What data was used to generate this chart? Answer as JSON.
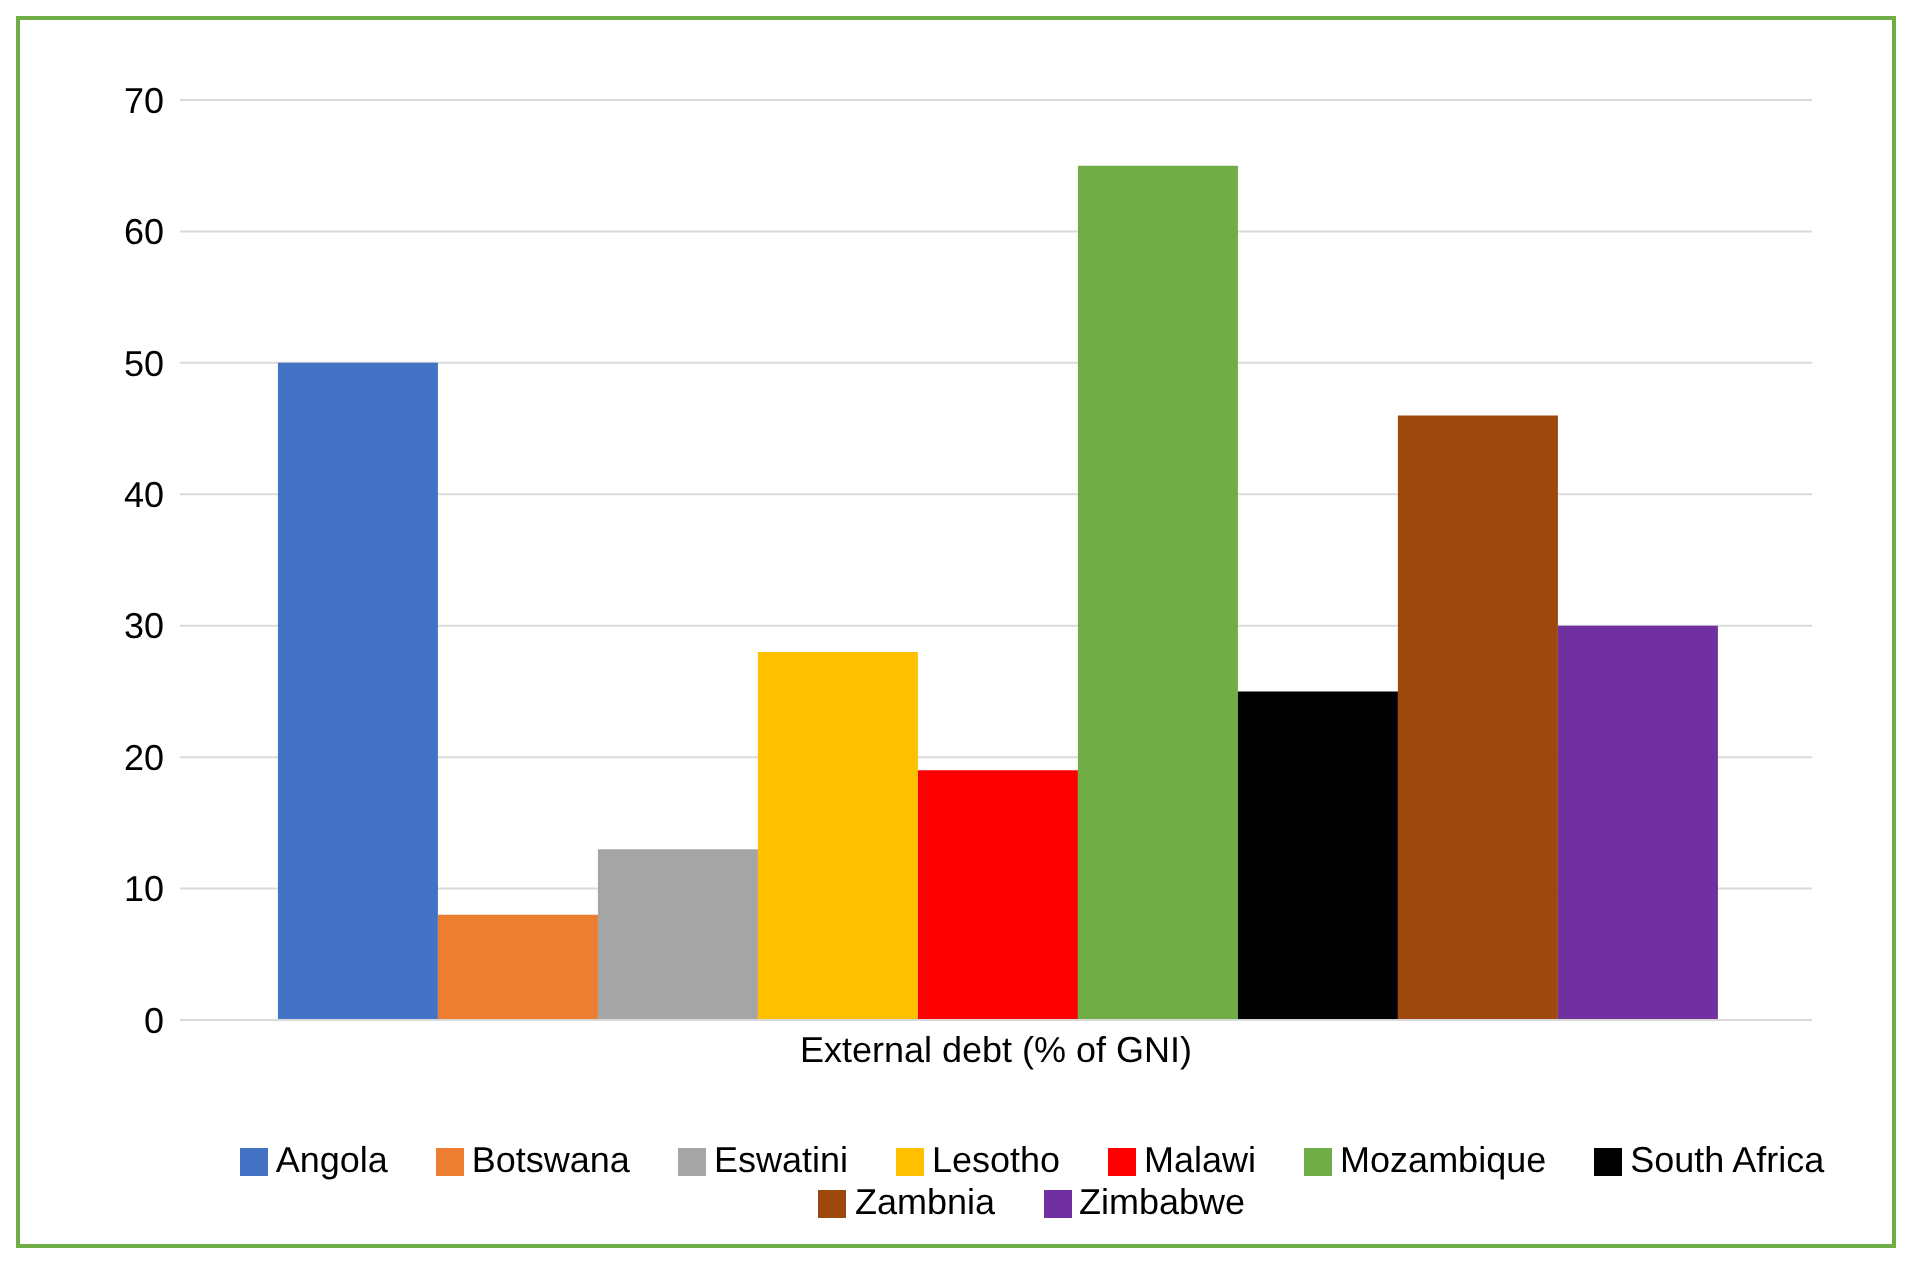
{
  "chart_data": {
    "type": "bar",
    "categories": [
      "External debt (% of GNI)"
    ],
    "series": [
      {
        "name": "Angola",
        "color": "#4472c4",
        "values": [
          50
        ]
      },
      {
        "name": "Botswana",
        "color": "#ed7d31",
        "values": [
          8
        ]
      },
      {
        "name": "Eswatini",
        "color": "#a5a5a5",
        "values": [
          13
        ]
      },
      {
        "name": "Lesotho",
        "color": "#ffc000",
        "values": [
          28
        ]
      },
      {
        "name": "Malawi",
        "color": "#ff0000",
        "values": [
          19
        ]
      },
      {
        "name": "Mozambique",
        "color": "#70ad47",
        "values": [
          65
        ]
      },
      {
        "name": "South Africa",
        "color": "#000000",
        "values": [
          25
        ]
      },
      {
        "name": "Zambnia",
        "color": "#9e480e",
        "values": [
          46
        ]
      },
      {
        "name": "Zimbabwe",
        "color": "#7030a0",
        "values": [
          30
        ]
      }
    ],
    "ylim": [
      0,
      70
    ],
    "yticks": [
      0,
      10,
      20,
      30,
      40,
      50,
      60,
      70
    ],
    "grid": "y",
    "legend": "bottom"
  }
}
